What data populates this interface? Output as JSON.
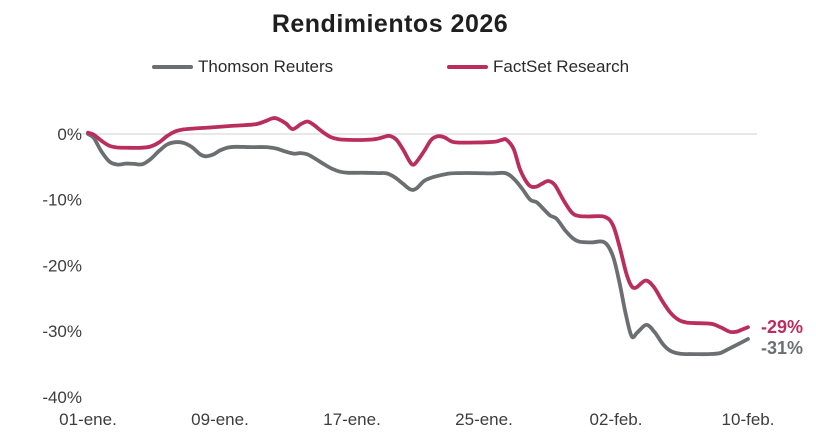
{
  "header": {
    "title": "Rendimientos 2026"
  },
  "legend": {
    "items": [
      {
        "label": "Thomson Reuters",
        "series": "thomson",
        "color": "#6d6e71"
      },
      {
        "label": "FactSet Research",
        "series": "factset",
        "color": "#b92e5c"
      }
    ]
  },
  "end_labels": {
    "factset": "-29%",
    "thomson": "-31%"
  },
  "colors": {
    "thomson": "#6d6e71",
    "factset": "#b92e5c",
    "gridline": "#d9d9d9",
    "axis_text": "#3d3d3d",
    "title_text": "#1f1f1f"
  },
  "chart_data": {
    "type": "line",
    "title": "Rendimientos 2026",
    "xlabel": "",
    "ylabel": "",
    "legend_position": "top",
    "grid": "horizontal gridline at 0% only",
    "x_axis": {
      "unit": "days since 01-ene",
      "range_days": [
        0,
        40
      ],
      "tick_days": [
        0,
        8,
        16,
        24,
        32,
        40
      ],
      "tick_labels": [
        "01-ene.",
        "09-ene.",
        "17-ene.",
        "25-ene.",
        "02-feb.",
        "10-feb."
      ]
    },
    "y_axis": {
      "unit": "percent return",
      "range": [
        -40,
        3
      ],
      "ticks": [
        0,
        -10,
        -20,
        -30,
        -40
      ],
      "tick_labels": [
        "0%",
        "-10%",
        "-20%",
        "-30%",
        "-40%"
      ]
    },
    "series": [
      {
        "name": "Thomson Reuters",
        "color": "#6d6e71",
        "final_value_label": "-31%",
        "points": [
          [
            0,
            0
          ],
          [
            0.35,
            -0.6
          ],
          [
            0.8,
            -2.6
          ],
          [
            1.3,
            -4.2
          ],
          [
            1.8,
            -4.65
          ],
          [
            2.3,
            -4.5
          ],
          [
            2.8,
            -4.55
          ],
          [
            3.3,
            -4.6
          ],
          [
            3.8,
            -3.8
          ],
          [
            4.3,
            -2.6
          ],
          [
            4.8,
            -1.6
          ],
          [
            5.3,
            -1.25
          ],
          [
            5.8,
            -1.35
          ],
          [
            6.3,
            -2.0
          ],
          [
            6.8,
            -3.1
          ],
          [
            7.15,
            -3.4
          ],
          [
            7.6,
            -3.1
          ],
          [
            8,
            -2.5
          ],
          [
            8.5,
            -2.05
          ],
          [
            9,
            -1.95
          ],
          [
            10,
            -2.0
          ],
          [
            10.8,
            -2.0
          ],
          [
            11.4,
            -2.2
          ],
          [
            12,
            -2.7
          ],
          [
            12.5,
            -3.0
          ],
          [
            12.9,
            -2.9
          ],
          [
            13.3,
            -3.1
          ],
          [
            13.8,
            -3.8
          ],
          [
            14.3,
            -4.6
          ],
          [
            14.8,
            -5.3
          ],
          [
            15.3,
            -5.75
          ],
          [
            15.8,
            -5.9
          ],
          [
            16.8,
            -5.9
          ],
          [
            17.6,
            -5.95
          ],
          [
            18.1,
            -6.0
          ],
          [
            18.6,
            -6.6
          ],
          [
            19.1,
            -7.6
          ],
          [
            19.55,
            -8.45
          ],
          [
            19.9,
            -8.3
          ],
          [
            20.4,
            -7.1
          ],
          [
            21,
            -6.5
          ],
          [
            21.8,
            -6.05
          ],
          [
            22.5,
            -5.95
          ],
          [
            23.5,
            -5.95
          ],
          [
            24.5,
            -6.0
          ],
          [
            25.3,
            -5.95
          ],
          [
            25.8,
            -6.8
          ],
          [
            26.3,
            -8.3
          ],
          [
            26.8,
            -10.0
          ],
          [
            27.2,
            -10.4
          ],
          [
            27.6,
            -11.4
          ],
          [
            28,
            -12.4
          ],
          [
            28.4,
            -12.9
          ],
          [
            28.9,
            -14.6
          ],
          [
            29.4,
            -15.9
          ],
          [
            29.8,
            -16.4
          ],
          [
            30.5,
            -16.5
          ],
          [
            31.3,
            -16.5
          ],
          [
            31.8,
            -18.5
          ],
          [
            32.2,
            -22.5
          ],
          [
            32.6,
            -27.5
          ],
          [
            32.95,
            -30.8
          ],
          [
            33.3,
            -30.2
          ],
          [
            33.85,
            -29.05
          ],
          [
            34.35,
            -30.2
          ],
          [
            34.85,
            -32.0
          ],
          [
            35.3,
            -33.0
          ],
          [
            35.9,
            -33.45
          ],
          [
            36.6,
            -33.5
          ],
          [
            37.6,
            -33.5
          ],
          [
            38.3,
            -33.35
          ],
          [
            38.8,
            -32.75
          ],
          [
            39.4,
            -32.0
          ],
          [
            40,
            -31.2
          ]
        ]
      },
      {
        "name": "FactSet Research",
        "color": "#b92e5c",
        "final_value_label": "-29%",
        "points": [
          [
            0,
            0.2
          ],
          [
            0.35,
            -0.1
          ],
          [
            0.8,
            -1.0
          ],
          [
            1.3,
            -1.8
          ],
          [
            1.8,
            -2.05
          ],
          [
            2.5,
            -2.1
          ],
          [
            3.2,
            -2.1
          ],
          [
            3.8,
            -1.9
          ],
          [
            4.3,
            -1.3
          ],
          [
            4.8,
            -0.3
          ],
          [
            5.3,
            0.4
          ],
          [
            5.8,
            0.7
          ],
          [
            6.5,
            0.85
          ],
          [
            7.5,
            1.0
          ],
          [
            8.5,
            1.2
          ],
          [
            9.5,
            1.35
          ],
          [
            10.2,
            1.5
          ],
          [
            10.7,
            1.9
          ],
          [
            11.2,
            2.4
          ],
          [
            11.5,
            2.3
          ],
          [
            12,
            1.6
          ],
          [
            12.4,
            0.75
          ],
          [
            12.9,
            1.5
          ],
          [
            13.3,
            1.9
          ],
          [
            13.7,
            1.35
          ],
          [
            14.2,
            0.35
          ],
          [
            14.7,
            -0.45
          ],
          [
            15.2,
            -0.8
          ],
          [
            15.8,
            -0.9
          ],
          [
            16.8,
            -0.9
          ],
          [
            17.5,
            -0.75
          ],
          [
            18,
            -0.4
          ],
          [
            18.3,
            -0.3
          ],
          [
            18.7,
            -0.9
          ],
          [
            19.1,
            -2.4
          ],
          [
            19.5,
            -4.2
          ],
          [
            19.75,
            -4.65
          ],
          [
            20.1,
            -3.6
          ],
          [
            20.4,
            -2.5
          ],
          [
            20.8,
            -0.9
          ],
          [
            21.2,
            -0.35
          ],
          [
            21.6,
            -0.5
          ],
          [
            22,
            -1.1
          ],
          [
            22.4,
            -1.3
          ],
          [
            23.5,
            -1.3
          ],
          [
            24.2,
            -1.25
          ],
          [
            24.7,
            -1.15
          ],
          [
            25.1,
            -0.9
          ],
          [
            25.35,
            -0.85
          ],
          [
            25.8,
            -2.3
          ],
          [
            26.2,
            -5.5
          ],
          [
            26.7,
            -7.7
          ],
          [
            27.1,
            -8.05
          ],
          [
            27.5,
            -7.6
          ],
          [
            27.9,
            -7.15
          ],
          [
            28.3,
            -7.8
          ],
          [
            28.8,
            -10.0
          ],
          [
            29.3,
            -11.9
          ],
          [
            29.7,
            -12.45
          ],
          [
            30.3,
            -12.55
          ],
          [
            31.3,
            -12.6
          ],
          [
            31.8,
            -13.8
          ],
          [
            32.2,
            -17.0
          ],
          [
            32.6,
            -21.0
          ],
          [
            32.9,
            -23.0
          ],
          [
            33.2,
            -23.4
          ],
          [
            33.8,
            -22.3
          ],
          [
            34.3,
            -23.3
          ],
          [
            34.8,
            -25.4
          ],
          [
            35.3,
            -27.2
          ],
          [
            35.8,
            -28.3
          ],
          [
            36.3,
            -28.7
          ],
          [
            37,
            -28.8
          ],
          [
            37.8,
            -28.9
          ],
          [
            38.4,
            -29.5
          ],
          [
            38.9,
            -30.1
          ],
          [
            39.3,
            -30.1
          ],
          [
            39.7,
            -29.7
          ],
          [
            40,
            -29.4
          ]
        ]
      }
    ]
  }
}
